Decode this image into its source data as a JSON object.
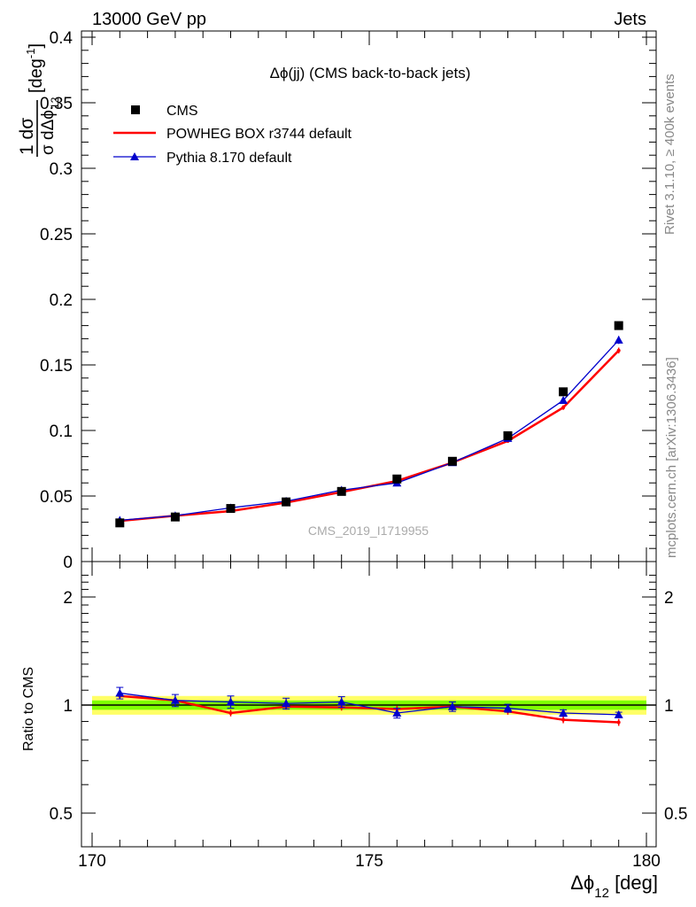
{
  "header": {
    "left": "13000 GeV pp",
    "right": "Jets"
  },
  "side_labels": {
    "rivet": "Rivet 3.1.10, ≥ 400k events",
    "mcplots": "mcplots.cern.ch [arXiv:1306.3436]"
  },
  "title": "Δϕ(jj) (CMS back-to-back jets)",
  "watermark": "CMS_2019_I1719955",
  "ylabel_main": {
    "fraction_top": "1  dσ",
    "fraction_bottom": "σ dΔϕ",
    "sub": "12",
    "unit": "[deg",
    "unit_sup": "-1",
    "unit_close": "]"
  },
  "ylabel_ratio": "Ratio to CMS",
  "xlabel": {
    "text": "Δϕ",
    "sub": "12",
    "unit": "[deg]"
  },
  "colors": {
    "cms": "#000000",
    "powheg": "#ff0000",
    "pythia": "#0000cc",
    "band_inner": "#7fff00",
    "band_outer": "#ffff66"
  },
  "chart_data": [
    {
      "type": "scatter",
      "panel": "main",
      "xlim": [
        170,
        180
      ],
      "ylim": [
        0,
        0.4
      ],
      "x_ticks": [
        170,
        175,
        180
      ],
      "y_ticks": [
        "0",
        "0.05",
        "0.1",
        "0.15",
        "0.2",
        "0.25",
        "0.3",
        "0.35",
        "0.4"
      ],
      "y_tick_values": [
        0,
        0.05,
        0.1,
        0.15,
        0.2,
        0.25,
        0.3,
        0.35,
        0.4
      ],
      "legend_position": "top-left",
      "x": [
        170.5,
        171.5,
        172.5,
        173.5,
        174.5,
        175.5,
        176.5,
        177.5,
        178.5,
        179.5
      ],
      "series": [
        {
          "name": "CMS",
          "style": "markers",
          "values": [
            0.0295,
            0.034,
            0.0405,
            0.0455,
            0.0535,
            0.063,
            0.0765,
            0.096,
            0.1295,
            0.18
          ]
        },
        {
          "name": "POWHEG BOX r3744 default",
          "style": "line",
          "values": [
            0.031,
            0.035,
            0.0385,
            0.045,
            0.053,
            0.0615,
            0.0755,
            0.092,
            0.1175,
            0.161
          ],
          "errors": [
            0.0008,
            0.0008,
            0.0009,
            0.001,
            0.0011,
            0.0012,
            0.0013,
            0.0015,
            0.0018,
            0.0022
          ]
        },
        {
          "name": "Pythia 8.170 default",
          "style": "line-triangles",
          "values": [
            0.0315,
            0.035,
            0.041,
            0.046,
            0.0545,
            0.06,
            0.0755,
            0.094,
            0.123,
            0.169
          ],
          "errors": [
            0.0012,
            0.0012,
            0.0014,
            0.0015,
            0.0017,
            0.0018,
            0.002,
            0.0022,
            0.0025,
            0.003
          ]
        }
      ]
    },
    {
      "type": "scatter",
      "panel": "ratio",
      "xlim": [
        170,
        180
      ],
      "ylim": [
        0.4,
        2.35
      ],
      "y_scale": "log",
      "x_ticks": [
        170,
        175,
        180
      ],
      "y_ticks": [
        "0.5",
        "1",
        "2"
      ],
      "y_tick_values": [
        0.5,
        1,
        2
      ],
      "x": [
        170.5,
        171.5,
        172.5,
        173.5,
        174.5,
        175.5,
        176.5,
        177.5,
        178.5,
        179.5
      ],
      "reference_band": {
        "inner": 0.03,
        "outer": 0.06
      },
      "series": [
        {
          "name": "POWHEG BOX r3744 default",
          "values": [
            1.06,
            1.03,
            0.95,
            0.99,
            0.985,
            0.975,
            0.99,
            0.96,
            0.91,
            0.895
          ],
          "errors": [
            0.02,
            0.02,
            0.02,
            0.02,
            0.02,
            0.02,
            0.02,
            0.02,
            0.02,
            0.02
          ]
        },
        {
          "name": "Pythia 8.170 default",
          "values": [
            1.08,
            1.03,
            1.02,
            1.01,
            1.02,
            0.95,
            0.99,
            0.98,
            0.95,
            0.94
          ],
          "errors": [
            0.04,
            0.04,
            0.04,
            0.035,
            0.035,
            0.03,
            0.03,
            0.025,
            0.02,
            0.015
          ]
        }
      ]
    }
  ]
}
